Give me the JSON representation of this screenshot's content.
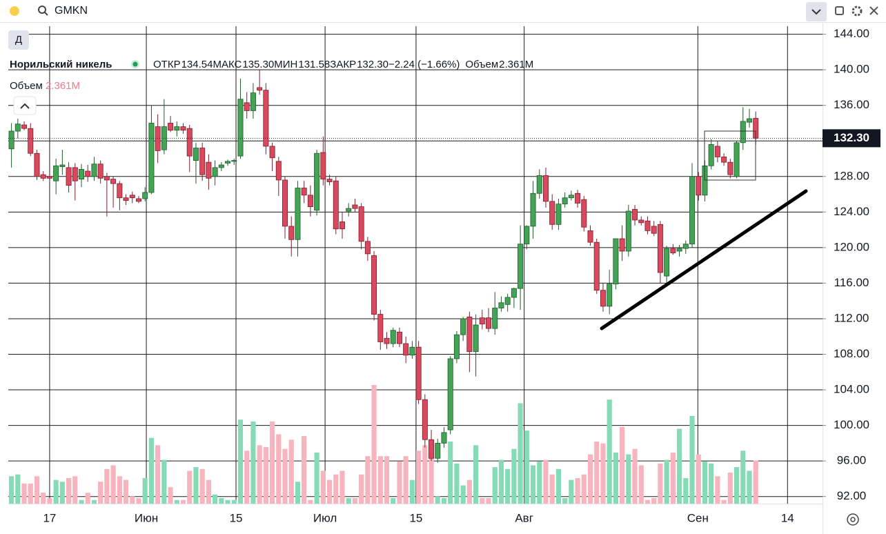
{
  "toolbar": {
    "symbol": "GMKN"
  },
  "legend": {
    "interval": "Д",
    "name": "Норильский никель",
    "fields": [
      {
        "label": "ОТКР",
        "value": "134.54"
      },
      {
        "label": "МАКС",
        "value": "135.30"
      },
      {
        "label": "МИН",
        "value": "131.58"
      },
      {
        "label": "ЗАКР",
        "value": "132.30"
      }
    ],
    "change": "−2.24 (−1.66%)",
    "volume_label": "Объем",
    "volume_value": "2.361M",
    "volume_pane_label": "Объем",
    "volume_pane_value": "2.361M"
  },
  "chart_data": {
    "type": "candlestick",
    "open": [
      131.1,
      133.1,
      133.8,
      133.4,
      130.6,
      128.2,
      128.0,
      127.5,
      129.1,
      129.0,
      129.0,
      127.7,
      128.6,
      128.0,
      129.4,
      128.0,
      127.7,
      127.2,
      125.6,
      125.9,
      125.5,
      125.5,
      126.2,
      133.6,
      131.0,
      134.0,
      133.2,
      133.6,
      133.4,
      129.8,
      131.2,
      129.6,
      128.0,
      129.0,
      129.5,
      129.7,
      130.3,
      136.3,
      135.4,
      138.0,
      137.7,
      131.4,
      129.7,
      127.6,
      122.4,
      120.9,
      126.7,
      125.9,
      124.2,
      130.7,
      127.7,
      127.5,
      122.9,
      124.1,
      124.8,
      124.6,
      120.7,
      119.1,
      112.5,
      109.8,
      109.2,
      110.5,
      109.2,
      107.9,
      108.8,
      102.9,
      98.4,
      96.3,
      98.0,
      99.5,
      107.5,
      110.2,
      112.2,
      108.3,
      112.1,
      112.1,
      110.9,
      113.2,
      113.6,
      114.4,
      115.4,
      120.4,
      122.4,
      126.1,
      128.1,
      125.2,
      122.6,
      124.9,
      125.6,
      126.1,
      125.4,
      121.9,
      120.6,
      115.2,
      113.4,
      115.9,
      121.0,
      119.6,
      124.3,
      123.1,
      123.0,
      122.4,
      122.6,
      116.8,
      119.9,
      119.6,
      119.9,
      120.4,
      128.0,
      125.9,
      129.2,
      131.4,
      130.2,
      129.6,
      128.0,
      131.8,
      134.1,
      134.54
    ],
    "high": [
      134.0,
      134.5,
      134.2,
      134.0,
      131.0,
      128.6,
      128.4,
      130.0,
      131.0,
      129.6,
      129.5,
      129.4,
      129.3,
      130.2,
      129.8,
      128.4,
      128.0,
      127.5,
      126.0,
      126.3,
      125.8,
      126.8,
      136.0,
      135.0,
      136.7,
      134.8,
      134.2,
      134.0,
      133.8,
      131.8,
      131.8,
      130.5,
      129.8,
      129.6,
      129.9,
      130.0,
      139.0,
      137.5,
      138.5,
      140.0,
      138.5,
      131.8,
      130.2,
      128.0,
      123.5,
      127.5,
      127.5,
      127.0,
      131.0,
      132.5,
      128.2,
      128.0,
      124.0,
      125.0,
      125.5,
      125.0,
      121.2,
      119.6,
      113.0,
      110.5,
      111.0,
      111.0,
      110.0,
      109.5,
      109.5,
      103.5,
      99.5,
      98.5,
      99.8,
      107.8,
      110.6,
      112.2,
      112.8,
      112.5,
      113.0,
      113.2,
      115.0,
      114.5,
      114.8,
      115.5,
      122.5,
      122.5,
      127.5,
      128.8,
      129.0,
      126.0,
      125.5,
      126.2,
      126.4,
      126.5,
      125.8,
      122.5,
      121.0,
      116.0,
      117.5,
      121.0,
      122.5,
      124.8,
      124.8,
      123.5,
      123.5,
      123.0,
      123.0,
      120.2,
      120.4,
      120.3,
      120.8,
      129.5,
      128.5,
      129.8,
      132.2,
      132.0,
      130.6,
      130.0,
      132.0,
      135.8,
      135.6,
      135.3
    ],
    "low": [
      129.0,
      132.3,
      133.2,
      130.3,
      127.6,
      127.5,
      127.2,
      126.0,
      128.2,
      126.2,
      125.3,
      126.8,
      127.4,
      127.5,
      127.2,
      123.5,
      124.5,
      124.2,
      124.8,
      125.0,
      125.0,
      125.2,
      126.0,
      129.5,
      130.5,
      133.0,
      132.5,
      132.8,
      128.5,
      127.2,
      127.5,
      126.5,
      127.0,
      128.6,
      129.2,
      129.3,
      130.0,
      134.5,
      134.5,
      137.2,
      130.5,
      128.6,
      125.8,
      121.0,
      119.0,
      119.0,
      125.0,
      123.5,
      123.6,
      127.0,
      127.0,
      121.5,
      121.0,
      123.5,
      124.0,
      119.8,
      118.5,
      111.8,
      108.5,
      108.6,
      108.8,
      108.8,
      107.0,
      107.5,
      102.4,
      97.5,
      96.0,
      95.8,
      97.5,
      99.0,
      107.0,
      109.5,
      106.0,
      105.5,
      110.8,
      110.5,
      110.2,
      112.8,
      112.8,
      113.2,
      113.0,
      119.8,
      121.0,
      125.5,
      124.5,
      122.0,
      122.0,
      124.5,
      125.3,
      124.5,
      121.8,
      120.2,
      114.8,
      112.8,
      112.5,
      115.3,
      118.5,
      119.0,
      122.5,
      122.5,
      121.5,
      121.3,
      116.0,
      116.0,
      119.2,
      119.0,
      119.3,
      120.0,
      125.3,
      125.2,
      128.8,
      129.6,
      129.2,
      127.8,
      127.8,
      131.0,
      133.5,
      131.58
    ],
    "close": [
      133.1,
      133.9,
      133.4,
      130.6,
      128.0,
      127.8,
      127.8,
      129.2,
      129.3,
      127.0,
      127.5,
      128.8,
      128.0,
      129.4,
      127.8,
      127.6,
      127.2,
      125.6,
      125.3,
      125.6,
      125.2,
      126.2,
      134.0,
      130.9,
      133.6,
      133.2,
      133.6,
      133.2,
      130.3,
      131.2,
      128.2,
      127.8,
      129.0,
      129.3,
      129.7,
      129.8,
      136.7,
      135.4,
      137.4,
      137.7,
      131.4,
      130.1,
      127.6,
      122.4,
      120.9,
      126.7,
      125.9,
      124.6,
      130.6,
      127.7,
      127.4,
      122.1,
      122.1,
      124.4,
      124.4,
      120.7,
      119.3,
      112.5,
      109.4,
      109.2,
      110.7,
      109.2,
      107.9,
      108.8,
      102.9,
      98.4,
      96.3,
      98.0,
      99.2,
      107.5,
      110.2,
      112.0,
      108.3,
      111.3,
      111.4,
      110.9,
      113.2,
      113.8,
      114.4,
      115.4,
      120.4,
      122.4,
      126.1,
      128.1,
      125.2,
      122.6,
      124.9,
      125.6,
      125.9,
      125.0,
      122.3,
      120.6,
      115.2,
      113.4,
      115.9,
      121.0,
      119.6,
      124.1,
      123.1,
      122.8,
      121.9,
      121.6,
      117.2,
      119.9,
      119.4,
      119.9,
      120.4,
      128.0,
      125.9,
      129.2,
      131.6,
      130.2,
      129.6,
      128.2,
      131.8,
      134.2,
      134.5,
      132.3
    ],
    "volume": [
      1.5,
      1.6,
      1.1,
      1.1,
      1.5,
      0.6,
      0.3,
      1.3,
      1.2,
      1.4,
      1.5,
      0.2,
      0.6,
      0.2,
      1.2,
      1.9,
      2.1,
      1.5,
      1.3,
      0.4,
      0.3,
      1.4,
      3.6,
      3.2,
      2.4,
      0.9,
      0.2,
      0.2,
      1.8,
      2.0,
      1.9,
      1.3,
      0.5,
      0.3,
      0.2,
      0.2,
      4.6,
      2.9,
      4.5,
      3.2,
      3.1,
      4.5,
      3.8,
      3.0,
      3.5,
      1.2,
      3.7,
      0.2,
      2.8,
      1.8,
      1.3,
      1.6,
      1.8,
      0.3,
      0.3,
      1.6,
      2.6,
      6.5,
      2.6,
      2.6,
      0.3,
      2.3,
      2.6,
      1.3,
      2.9,
      3.2,
      3.2,
      0.4,
      0.3,
      3.4,
      2.2,
      1.0,
      1.3,
      3.2,
      0.3,
      0.3,
      2.0,
      2.4,
      1.9,
      3.0,
      5.5,
      4.0,
      2.1,
      2.3,
      2.4,
      1.6,
      1.9,
      0.3,
      1.3,
      1.4,
      1.6,
      2.7,
      3.4,
      3.3,
      5.7,
      2.8,
      4.2,
      2.7,
      3.0,
      2.1,
      0.2,
      0.3,
      2.2,
      2.4,
      2.8,
      4.1,
      1.4,
      4.8,
      2.7,
      2.3,
      2.2,
      1.5,
      0.2,
      1.7,
      2.0,
      2.9,
      1.8,
      2.361
    ],
    "up_color": "#43a455",
    "down_color": "#d9485c",
    "up_volume_color": "#86dbb6",
    "down_volume_color": "#f8b4be",
    "xlim": [
      -0.5,
      127.5
    ],
    "xticks": [
      {
        "value": 6,
        "label": "17"
      },
      {
        "value": 21.2,
        "label": "Июн"
      },
      {
        "value": 35.3,
        "label": "15"
      },
      {
        "value": 49.3,
        "label": "Июл"
      },
      {
        "value": 63.6,
        "label": "15"
      },
      {
        "value": 80.6,
        "label": "Авг"
      },
      {
        "value": 107.9,
        "label": "Сен"
      },
      {
        "value": 122,
        "label": "14"
      }
    ],
    "ylim": [
      91.2,
      144.9
    ],
    "yticks": [
      {
        "value": 92,
        "label": "92.00"
      },
      {
        "value": 96,
        "label": "96.00"
      },
      {
        "value": 100,
        "label": "100.00"
      },
      {
        "value": 104,
        "label": "104.00"
      },
      {
        "value": 108,
        "label": "108.00"
      },
      {
        "value": 112,
        "label": "112.00"
      },
      {
        "value": 116,
        "label": "116.00"
      },
      {
        "value": 120,
        "label": "120.00"
      },
      {
        "value": 124,
        "label": "124.00"
      },
      {
        "value": 128,
        "label": "128.00"
      },
      {
        "value": 132,
        "label": "132.00"
      },
      {
        "value": 136,
        "label": "136.00"
      },
      {
        "value": 140,
        "label": "140.00"
      },
      {
        "value": 144,
        "label": "144.00"
      }
    ],
    "last_price_label": "132.30",
    "grid": true
  }
}
